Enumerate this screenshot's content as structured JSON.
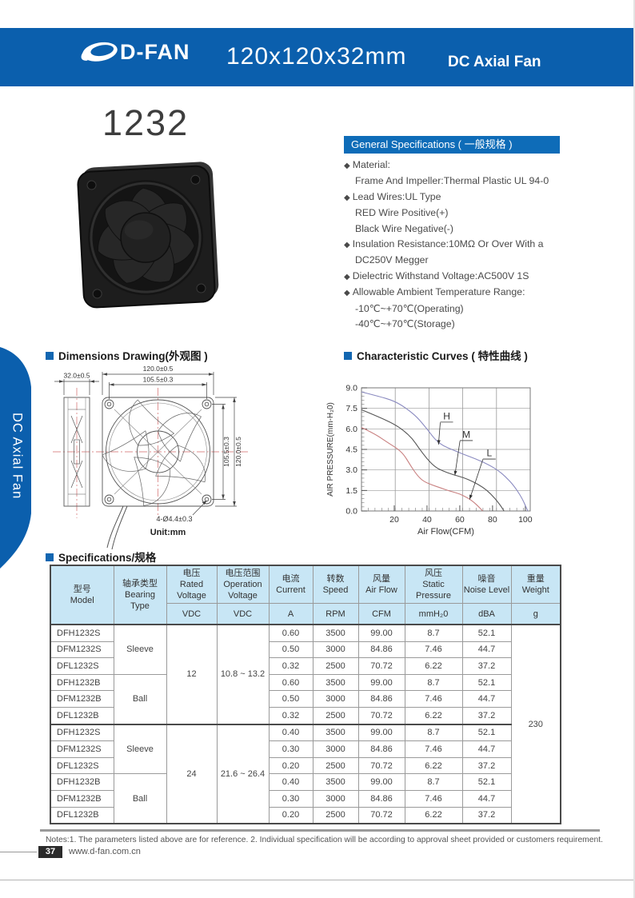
{
  "header": {
    "logo_text": "D-FAN",
    "title": "120x120x32mm",
    "subtitle": "DC Axial Fan"
  },
  "sidebar_label": "DC Axial Fan",
  "model_number": "1232",
  "bullet_char": "◆",
  "colors": {
    "brand_blue": "#0b5fad",
    "section_blue": "#0e6cb8",
    "table_header_bg": "#c8e6f5",
    "curve_h": "#8a8ac0",
    "curve_m": "#555555",
    "curve_l": "#c87f7f"
  },
  "general_specs": {
    "title": "General Specifications ( 一般规格 )",
    "items": [
      {
        "b": 1,
        "t": "Material:"
      },
      {
        "b": 0,
        "t": "Frame And Impeller:Thermal Plastic UL 94-0"
      },
      {
        "b": 1,
        "t": "Lead Wires:UL Type"
      },
      {
        "b": 0,
        "t": "RED Wire Positive(+)"
      },
      {
        "b": 0,
        "t": "Black Wire Negative(-)"
      },
      {
        "b": 1,
        "t": "Insulation Resistance:10MΩ Or Over With a"
      },
      {
        "b": 0,
        "t": "DC250V Megger"
      },
      {
        "b": 1,
        "t": "Dielectric Withstand Voltage:AC500V 1S"
      },
      {
        "b": 1,
        "t": "Allowable Ambient Temperature Range:"
      },
      {
        "b": 0,
        "t": "-10℃~+70℃(Operating)"
      },
      {
        "b": 0,
        "t": "-40℃~+70℃(Storage)"
      }
    ]
  },
  "sections": {
    "dimensions_title": "Dimensions Drawing(外观图 )",
    "curves_title": "Characteristic Curves ( 特性曲线 )",
    "table_title": "Specifications/规格"
  },
  "dimensions": {
    "depth": "32.0±0.5",
    "outer_w": "120.0±0.5",
    "pitch_w": "105.5±0.3",
    "pitch_h": "105.5±0.3",
    "outer_h": "120.0±0.5",
    "holes": "4-Ø4.4±0.3",
    "unit": "Unit:mm"
  },
  "chart_data": {
    "type": "line",
    "title": "Characteristic Curves ( 特性曲线 )",
    "xlabel": "Air Flow(CFM)",
    "ylabel": "AIR PRESSURE(mm-H₂0)",
    "xlim": [
      0,
      103
    ],
    "ylim": [
      0,
      9
    ],
    "x_ticks": [
      20,
      40,
      60,
      80,
      100
    ],
    "y_ticks": [
      0,
      1.5,
      3,
      4.5,
      6,
      7.5,
      9
    ],
    "x_gridlines": [
      20.6,
      41.2,
      61.8,
      82.4
    ],
    "x_minor_step": 4.12,
    "y_minor_step": 0.3,
    "grid": true,
    "legend_position": "inline-labels",
    "series": [
      {
        "name": "H",
        "color": "#8a8ac0",
        "points": [
          [
            0,
            8.7
          ],
          [
            10,
            8.4
          ],
          [
            20,
            8.05
          ],
          [
            28,
            7.45
          ],
          [
            34,
            6.85
          ],
          [
            40,
            6.0
          ],
          [
            45,
            5.2
          ],
          [
            50,
            4.75
          ],
          [
            56,
            4.45
          ],
          [
            62,
            4.15
          ],
          [
            70,
            3.8
          ],
          [
            78,
            3.35
          ],
          [
            83,
            3.0
          ],
          [
            88,
            2.5
          ],
          [
            93,
            1.85
          ],
          [
            98,
            0.95
          ],
          [
            101.5,
            0
          ]
        ]
      },
      {
        "name": "M",
        "color": "#555555",
        "points": [
          [
            0,
            7.4
          ],
          [
            10,
            6.9
          ],
          [
            20,
            6.35
          ],
          [
            26,
            5.85
          ],
          [
            31,
            5.3
          ],
          [
            35,
            4.6
          ],
          [
            40,
            3.8
          ],
          [
            45,
            3.2
          ],
          [
            50,
            2.9
          ],
          [
            56,
            2.65
          ],
          [
            62,
            2.45
          ],
          [
            68,
            2.15
          ],
          [
            74,
            1.75
          ],
          [
            79,
            1.25
          ],
          [
            84,
            0.55
          ],
          [
            87,
            0
          ]
        ]
      },
      {
        "name": "L",
        "color": "#c87f7f",
        "points": [
          [
            0,
            6.1
          ],
          [
            8,
            5.65
          ],
          [
            16,
            5.0
          ],
          [
            22,
            4.55
          ],
          [
            26,
            4.1
          ],
          [
            30,
            3.3
          ],
          [
            34,
            2.6
          ],
          [
            38,
            2.15
          ],
          [
            43,
            1.9
          ],
          [
            48,
            1.7
          ],
          [
            54,
            1.45
          ],
          [
            60,
            1.25
          ],
          [
            65,
            0.95
          ],
          [
            69,
            0.6
          ],
          [
            72,
            0.25
          ],
          [
            74,
            0
          ]
        ]
      }
    ],
    "labels": [
      {
        "text": "H",
        "x": 52,
        "y": 6.7,
        "tx": 47,
        "ty": 4.85
      },
      {
        "text": "M",
        "x": 64,
        "y": 5.35,
        "tx": 57,
        "ty": 2.6
      },
      {
        "text": "L",
        "x": 78,
        "y": 4.0,
        "tx": 66,
        "ty": 0.85
      }
    ]
  },
  "spec_table": {
    "columns": [
      {
        "key": "model",
        "lines": [
          "型号",
          "Model"
        ],
        "unit": null
      },
      {
        "key": "bearing",
        "lines": [
          "轴承类型",
          "Bearing",
          "Type"
        ],
        "unit": null
      },
      {
        "key": "volt",
        "lines": [
          "电压",
          "Rated",
          "Voltage"
        ],
        "unit": "VDC"
      },
      {
        "key": "op",
        "lines": [
          "电压范围",
          "Operation",
          "Voltage"
        ],
        "unit": "VDC"
      },
      {
        "key": "current",
        "lines": [
          "电流",
          "Current"
        ],
        "unit": "A"
      },
      {
        "key": "speed",
        "lines": [
          "转数",
          "Speed"
        ],
        "unit": "RPM"
      },
      {
        "key": "airflow",
        "lines": [
          "风量",
          "Air Flow"
        ],
        "unit": "CFM"
      },
      {
        "key": "pressure",
        "lines": [
          "风压",
          "Static",
          "Pressure"
        ],
        "unit": "mmH₂0"
      },
      {
        "key": "noise",
        "lines": [
          "噪音",
          "Noise Level"
        ],
        "unit": "dBA"
      },
      {
        "key": "weight",
        "lines": [
          "重量",
          "Weight"
        ],
        "unit": "g"
      }
    ],
    "rows": [
      {
        "model": "DFH1232S",
        "current": "0.60",
        "speed": "3500",
        "airflow": "99.00",
        "pressure": "8.7",
        "noise": "52.1"
      },
      {
        "model": "DFM1232S",
        "current": "0.50",
        "speed": "3000",
        "airflow": "84.86",
        "pressure": "7.46",
        "noise": "44.7"
      },
      {
        "model": "DFL1232S",
        "current": "0.32",
        "speed": "2500",
        "airflow": "70.72",
        "pressure": "6.22",
        "noise": "37.2"
      },
      {
        "model": "DFH1232B",
        "current": "0.60",
        "speed": "3500",
        "airflow": "99.00",
        "pressure": "8.7",
        "noise": "52.1"
      },
      {
        "model": "DFM1232B",
        "current": "0.50",
        "speed": "3000",
        "airflow": "84.86",
        "pressure": "7.46",
        "noise": "44.7"
      },
      {
        "model": "DFL1232B",
        "current": "0.32",
        "speed": "2500",
        "airflow": "70.72",
        "pressure": "6.22",
        "noise": "37.2"
      },
      {
        "model": "DFH1232S",
        "current": "0.40",
        "speed": "3500",
        "airflow": "99.00",
        "pressure": "8.7",
        "noise": "52.1"
      },
      {
        "model": "DFM1232S",
        "current": "0.30",
        "speed": "3000",
        "airflow": "84.86",
        "pressure": "7.46",
        "noise": "44.7"
      },
      {
        "model": "DFL1232S",
        "current": "0.20",
        "speed": "2500",
        "airflow": "70.72",
        "pressure": "6.22",
        "noise": "37.2"
      },
      {
        "model": "DFH1232B",
        "current": "0.40",
        "speed": "3500",
        "airflow": "99.00",
        "pressure": "8.7",
        "noise": "52.1"
      },
      {
        "model": "DFM1232B",
        "current": "0.30",
        "speed": "3000",
        "airflow": "84.86",
        "pressure": "7.46",
        "noise": "44.7"
      },
      {
        "model": "DFL1232B",
        "current": "0.20",
        "speed": "2500",
        "airflow": "70.72",
        "pressure": "6.22",
        "noise": "37.2"
      }
    ],
    "merges": {
      "bearing": [
        {
          "row": 0,
          "span": 3,
          "value": "Sleeve"
        },
        {
          "row": 3,
          "span": 3,
          "value": "Ball"
        },
        {
          "row": 6,
          "span": 3,
          "value": "Sleeve"
        },
        {
          "row": 9,
          "span": 3,
          "value": "Ball"
        }
      ],
      "volt": [
        {
          "row": 0,
          "span": 6,
          "value": "12"
        },
        {
          "row": 6,
          "span": 6,
          "value": "24"
        }
      ],
      "op": [
        {
          "row": 0,
          "span": 6,
          "value": "10.8 ~ 13.2"
        },
        {
          "row": 6,
          "span": 6,
          "value": "21.6 ~ 26.4"
        }
      ],
      "weight": [
        {
          "row": 0,
          "span": 12,
          "value": "230"
        }
      ]
    },
    "thick_separators": [
      6
    ]
  },
  "notes": "Notes:1. The parameters listed above are for reference.   2. Individual specification will be according to approval sheet provided or customers requirement.",
  "footer": {
    "page": "37",
    "website": "www.d-fan.com.cn"
  }
}
